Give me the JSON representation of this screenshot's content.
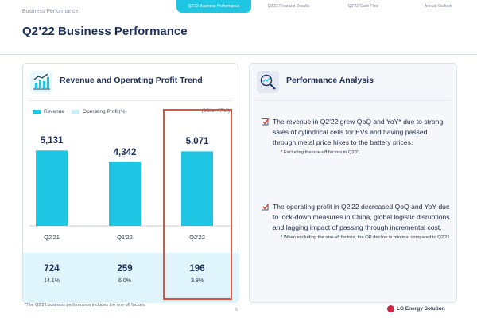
{
  "header": {
    "section_label": "Business Performance",
    "tabs": [
      {
        "label": "Q2'22 Business Performance",
        "active": true
      },
      {
        "label": "Q2'22 Financial Results",
        "active": false
      },
      {
        "label": "Q2'22 Cash Flow",
        "active": false
      },
      {
        "label": "Annual Outlook",
        "active": false
      }
    ]
  },
  "page_title": "Q2’22 Business Performance",
  "chart_panel": {
    "title": "Revenue and Operating Profit Trend",
    "legend": [
      "Revenue",
      "Operating Profit(%)"
    ],
    "unit": "(Billion KRW)",
    "icon": "bar-chart-icon"
  },
  "chart_data": {
    "type": "bar",
    "categories": [
      "Q2'21",
      "Q1'22",
      "Q2'22"
    ],
    "series": [
      {
        "name": "Revenue",
        "values": [
          5131,
          4342,
          5071
        ],
        "value_labels": [
          "5,131",
          "4,342",
          "5,071"
        ]
      },
      {
        "name": "Operating Profit(%)",
        "values": [
          724,
          259,
          196
        ],
        "margins": [
          "14.1%",
          "6.0%",
          "3.9%"
        ]
      }
    ],
    "ylim": [
      0,
      6500
    ],
    "highlight_category": "Q2'22",
    "colors": {
      "revenue": "#1fc6e3",
      "operating_profit": "#c9eef7",
      "highlight": "#e2513b"
    }
  },
  "analysis_panel": {
    "title": "Performance Analysis",
    "icon": "magnifier-chart-icon",
    "bullets": [
      {
        "text": "The revenue in Q2'22 grew QoQ and YoY* due to strong sales of cylindrical cells for EVs and having passed through metal price hikes to the battery prices.",
        "note": "* Excluding the one-off factors in Q2'21"
      },
      {
        "text": "The operating profit in Q2'22 decreased QoQ and YoY due to lock-down measures in China, global logistic disruptions and lagging impact of passing through incremental cost.",
        "note": "* When excluding the one-off factors, the OP decline is minimal compared to Q2'21"
      }
    ]
  },
  "footnote": "*The Q2'21 business performance includes the one-off factors.",
  "page_number": "5",
  "brand": "LG Energy Solution"
}
